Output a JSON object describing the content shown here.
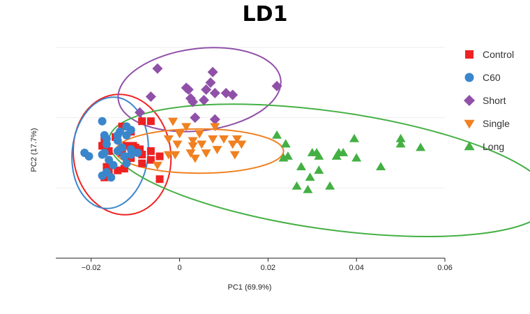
{
  "chart_data": {
    "type": "scatter",
    "title": "LD1",
    "xlabel": "PC1 (69.9%)",
    "ylabel": "PC2 (17.7%)",
    "xlim": [
      -0.028,
      0.06
    ],
    "ylim": [
      -0.02,
      0.04
    ],
    "xticks": [
      -0.02,
      0,
      0.02,
      0.04,
      0.06
    ],
    "xtick_labels": [
      "−0.02",
      "0",
      "0.02",
      "0.04",
      "0.06"
    ],
    "grid": true,
    "legend_position": "right",
    "series": [
      {
        "name": "Control",
        "color": "#ee2222",
        "marker": "square",
        "ellipse": {
          "cx": -0.013,
          "cy": 0.0095,
          "rx": 0.011,
          "ry": 0.0172,
          "angle_deg": -8
        },
        "points": [
          [
            -0.0085,
            0.019
          ],
          [
            -0.0065,
            0.019
          ],
          [
            -0.013,
            0.0175
          ],
          [
            -0.011,
            0.016
          ],
          [
            -0.017,
            0.014
          ],
          [
            -0.0175,
            0.012
          ],
          [
            -0.0145,
            0.0145
          ],
          [
            -0.012,
            0.012
          ],
          [
            -0.01,
            0.0115
          ],
          [
            -0.009,
            0.011
          ],
          [
            -0.0085,
            0.0095
          ],
          [
            -0.0065,
            0.0105
          ],
          [
            -0.0105,
            0.012
          ],
          [
            -0.016,
            0.0105
          ],
          [
            -0.013,
            0.01
          ],
          [
            -0.011,
            0.0085
          ],
          [
            -0.0065,
            0.008
          ],
          [
            -0.0045,
            0.009
          ],
          [
            -0.0085,
            0.007
          ],
          [
            -0.0165,
            0.006
          ],
          [
            -0.014,
            0.005
          ],
          [
            -0.0125,
            0.0055
          ],
          [
            -0.016,
            0.0045
          ],
          [
            -0.017,
            0.003
          ],
          [
            -0.0045,
            0.0025
          ]
        ]
      },
      {
        "name": "C60",
        "color": "#3a86cc",
        "marker": "circle",
        "ellipse": {
          "cx": -0.0157,
          "cy": 0.01,
          "rx": 0.0086,
          "ry": 0.0159,
          "angle_deg": 6
        },
        "points": [
          [
            -0.0175,
            0.019
          ],
          [
            -0.012,
            0.0175
          ],
          [
            -0.011,
            0.0165
          ],
          [
            -0.0135,
            0.016
          ],
          [
            -0.017,
            0.015
          ],
          [
            -0.014,
            0.015
          ],
          [
            -0.012,
            0.015
          ],
          [
            -0.0165,
            0.014
          ],
          [
            -0.014,
            0.0135
          ],
          [
            -0.0165,
            0.0125
          ],
          [
            -0.013,
            0.0115
          ],
          [
            -0.011,
            0.011
          ],
          [
            -0.014,
            0.0105
          ],
          [
            -0.0215,
            0.01
          ],
          [
            -0.017,
            0.01
          ],
          [
            -0.0095,
            0.01
          ],
          [
            -0.0205,
            0.009
          ],
          [
            -0.0175,
            0.0095
          ],
          [
            -0.0125,
            0.009
          ],
          [
            -0.011,
            0.0095
          ],
          [
            -0.016,
            0.008
          ],
          [
            -0.012,
            0.007
          ],
          [
            -0.015,
            0.0065
          ],
          [
            -0.0165,
            0.0045
          ],
          [
            -0.0175,
            0.0035
          ],
          [
            -0.0155,
            0.003
          ]
        ]
      },
      {
        "name": "Short",
        "color": "#9050a8",
        "marker": "diamond",
        "ellipse": {
          "cx": 0.0045,
          "cy": 0.028,
          "rx": 0.0185,
          "ry": 0.0117,
          "angle_deg": -7
        },
        "points": [
          [
            -0.005,
            0.034
          ],
          [
            0.0075,
            0.033
          ],
          [
            0.007,
            0.03
          ],
          [
            0.022,
            0.029
          ],
          [
            0.0015,
            0.0285
          ],
          [
            0.002,
            0.028
          ],
          [
            0.006,
            0.028
          ],
          [
            0.008,
            0.027
          ],
          [
            0.0105,
            0.027
          ],
          [
            0.012,
            0.0265
          ],
          [
            -0.0065,
            0.026
          ],
          [
            0.0025,
            0.0255
          ],
          [
            0.0055,
            0.025
          ],
          [
            0.003,
            0.0245
          ],
          [
            -0.009,
            0.0215
          ],
          [
            0.0035,
            0.02
          ],
          [
            0.008,
            0.0195
          ]
        ]
      },
      {
        "name": "Single",
        "color": "#f08020",
        "marker": "triangle-down",
        "ellipse": {
          "cx": 0.0045,
          "cy": 0.0105,
          "rx": 0.019,
          "ry": 0.0063,
          "angle_deg": 0
        },
        "points": [
          [
            -0.0015,
            0.019
          ],
          [
            0.0015,
            0.0175
          ],
          [
            0.008,
            0.0175
          ],
          [
            0.0,
            0.0155
          ],
          [
            0.0045,
            0.0155
          ],
          [
            -0.0025,
            0.014
          ],
          [
            0.003,
            0.0135
          ],
          [
            0.0075,
            0.014
          ],
          [
            0.01,
            0.014
          ],
          [
            0.013,
            0.014
          ],
          [
            -0.0005,
            0.0125
          ],
          [
            0.005,
            0.0125
          ],
          [
            0.012,
            0.0125
          ],
          [
            0.014,
            0.0125
          ],
          [
            0.003,
            0.012
          ],
          [
            0.0085,
            0.011
          ],
          [
            0.0025,
            0.01
          ],
          [
            0.006,
            0.01
          ],
          [
            -0.0025,
            0.0095
          ],
          [
            -0.001,
            0.0095
          ],
          [
            0.0125,
            0.0095
          ],
          [
            0.0035,
            0.0085
          ],
          [
            -0.005,
            0.0065
          ]
        ]
      },
      {
        "name": "Long",
        "color": "#44b044",
        "marker": "triangle-up",
        "ellipse": {
          "cx": 0.034,
          "cy": 0.005,
          "rx": 0.0505,
          "ry": 0.0168,
          "angle_deg": 8
        },
        "points": [
          [
            0.022,
            0.015
          ],
          [
            0.024,
            0.0125
          ],
          [
            0.0395,
            0.014
          ],
          [
            0.05,
            0.014
          ],
          [
            0.05,
            0.0125
          ],
          [
            0.0545,
            0.0115
          ],
          [
            0.03,
            0.01
          ],
          [
            0.031,
            0.01
          ],
          [
            0.036,
            0.01
          ],
          [
            0.037,
            0.01
          ],
          [
            0.0315,
            0.009
          ],
          [
            0.0355,
            0.009
          ],
          [
            0.0235,
            0.0085
          ],
          [
            0.0245,
            0.009
          ],
          [
            0.04,
            0.0085
          ],
          [
            0.0275,
            0.006
          ],
          [
            0.0455,
            0.006
          ],
          [
            0.0315,
            0.005
          ],
          [
            0.0295,
            0.003
          ],
          [
            0.0265,
            0.0005
          ],
          [
            0.034,
            0.0005
          ],
          [
            0.029,
            -0.0005
          ]
        ]
      }
    ]
  }
}
